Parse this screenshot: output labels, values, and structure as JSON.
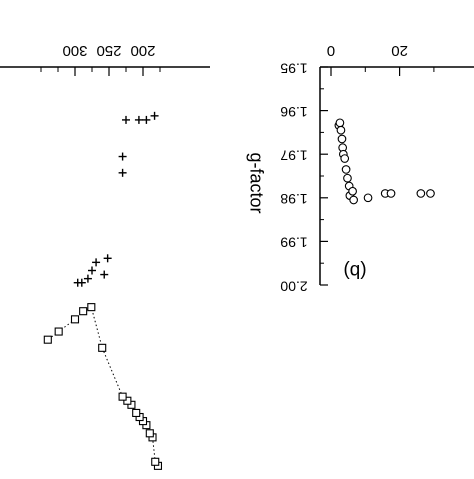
{
  "chart_data": [
    {
      "type": "scatter",
      "mirrored": true,
      "x_ticks": [
        "200",
        "250",
        "300"
      ],
      "series": [
        {
          "marker": "plus",
          "x": [
            183,
            195,
            206,
            225,
            230,
            230,
            252,
            257,
            269,
            275,
            281,
            290,
            296
          ],
          "y_rel": [
            0.12,
            0.13,
            0.13,
            0.13,
            0.22,
            0.26,
            0.47,
            0.51,
            0.48,
            0.5,
            0.52,
            0.53,
            0.53
          ]
        },
        {
          "marker": "square",
          "line": "dotted",
          "x": [
            178,
            182,
            186,
            190,
            195,
            200,
            205,
            210,
            217,
            223,
            230,
            260,
            276,
            288,
            300,
            324,
            340
          ],
          "y_rel": [
            0.98,
            0.97,
            0.91,
            0.9,
            0.88,
            0.87,
            0.86,
            0.85,
            0.83,
            0.82,
            0.81,
            0.69,
            0.59,
            0.6,
            0.62,
            0.65,
            0.67
          ]
        }
      ]
    },
    {
      "type": "scatter",
      "mirrored": true,
      "panel_label": "(b)",
      "ylabel": "g-factor",
      "x_ticks": [
        "0",
        "20"
      ],
      "y_ticks": [
        "1.95",
        "1.96",
        "1.97",
        "1.98",
        "1.99",
        "2.00"
      ],
      "xlim": [
        0,
        30
      ],
      "ylim": [
        1.95,
        2.0
      ],
      "series": [
        {
          "marker": "circle",
          "x": [
            2.3,
            2.6,
            2.9,
            3.2,
            3.4,
            3.6,
            4.0,
            4.4,
            4.8,
            5.3,
            5.5,
            6.3,
            6.6,
            10.8,
            15.8,
            17.5,
            26.2,
            29.0
          ],
          "y": [
            1.9634,
            1.9628,
            1.9645,
            1.9665,
            1.9685,
            1.97,
            1.971,
            1.9735,
            1.9755,
            1.9773,
            1.9795,
            1.9785,
            1.9805,
            1.98,
            1.979,
            1.979,
            1.979,
            1.979
          ]
        }
      ]
    }
  ]
}
